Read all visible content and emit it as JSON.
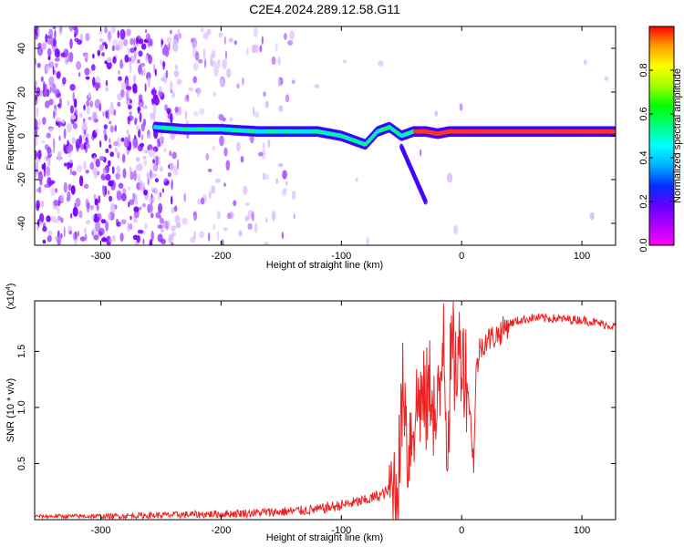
{
  "figure": {
    "title": "C2E4.2024.289.12.58.G11"
  },
  "chart_data": [
    {
      "type": "heatmap",
      "xlabel": "Height of straight line (km)",
      "ylabel": "Frequency (Hz)",
      "xlim": [
        -355,
        128
      ],
      "ylim": [
        -50,
        50
      ],
      "x_ticks": [
        -300,
        -200,
        -100,
        0,
        100
      ],
      "y_ticks": [
        -40,
        -20,
        0,
        20,
        40
      ],
      "colorbar": {
        "label": "Normalized spectral amplitude",
        "range": [
          0,
          1
        ],
        "ticks": [
          0.0,
          0.2,
          0.4,
          0.6,
          0.8
        ],
        "tick_labels": [
          "0.0",
          "0.2",
          "0.4",
          "0.6",
          "0.8"
        ],
        "colors": [
          "#ff00ff",
          "#b000ff",
          "#6000ff",
          "#0030ff",
          "#00b0ff",
          "#00ffff",
          "#00ff80",
          "#00ff00",
          "#a0ff00",
          "#ffff00",
          "#ffa000",
          "#ff0000"
        ]
      },
      "ridge": {
        "x": [
          -255,
          -230,
          -200,
          -170,
          -140,
          -120,
          -100,
          -90,
          -80,
          -70,
          -60,
          -50,
          -40,
          -30,
          -20,
          -10,
          0,
          20,
          50,
          80,
          100,
          128
        ],
        "y": [
          4,
          3,
          3,
          2,
          2,
          2,
          0,
          -2,
          -4,
          2,
          4,
          0,
          2,
          2,
          1,
          2,
          2,
          2,
          2,
          2,
          2,
          2
        ]
      },
      "grid": false,
      "legend": "colorbar-right"
    },
    {
      "type": "line",
      "xlabel": "Height of straight line (km)",
      "ylabel": "SNR (10 * v/v)",
      "y_scale_note": "(x10",
      "y_scale_exp": "4",
      "xlim": [
        -355,
        128
      ],
      "ylim": [
        0,
        1.95
      ],
      "x_ticks": [
        -300,
        -200,
        -100,
        0,
        100
      ],
      "y_ticks": [
        0.5,
        1.0,
        1.5
      ],
      "y_tick_labels": [
        "0.5",
        "1.0",
        "1.5"
      ],
      "series": [
        {
          "color": "#ee2222",
          "x": [
            -355,
            -300,
            -250,
            -200,
            -150,
            -120,
            -100,
            -80,
            -65,
            -55,
            -52,
            -48,
            -45,
            -40,
            -35,
            -30,
            -25,
            -22,
            -18,
            -15,
            -12,
            -10,
            -8,
            -5,
            0,
            5,
            8,
            10,
            12,
            15,
            20,
            25,
            30,
            35,
            40,
            50,
            60,
            80,
            100,
            110,
            128
          ],
          "y": [
            0.03,
            0.03,
            0.04,
            0.05,
            0.07,
            0.09,
            0.13,
            0.17,
            0.23,
            0.3,
            0.5,
            1.3,
            0.6,
            0.9,
            1.1,
            1.0,
            1.25,
            0.8,
            1.05,
            1.85,
            0.6,
            1.2,
            1.5,
            1.35,
            1.55,
            1.2,
            0.8,
            0.5,
            1.3,
            1.52,
            1.6,
            1.62,
            1.65,
            1.7,
            1.75,
            1.78,
            1.8,
            1.79,
            1.78,
            1.76,
            1.72
          ]
        }
      ],
      "grid": false
    }
  ]
}
